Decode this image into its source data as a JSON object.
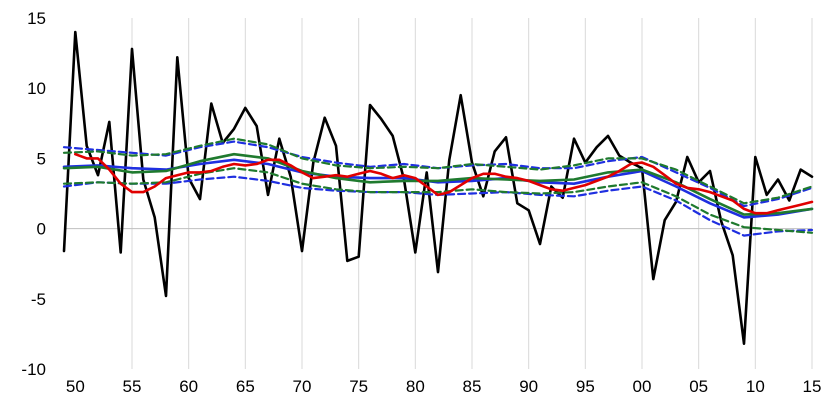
{
  "chart_data": {
    "type": "line",
    "title": "",
    "xlabel": "",
    "ylabel": "",
    "xlim": [
      1949,
      2015
    ],
    "ylim": [
      -10,
      15
    ],
    "y_ticks": [
      -10,
      -5,
      0,
      5,
      10,
      15
    ],
    "x_tick_values": [
      1950,
      1955,
      1960,
      1965,
      1970,
      1975,
      1980,
      1985,
      1990,
      1995,
      2000,
      2005,
      2010,
      2015
    ],
    "x_tick_labels": [
      "50",
      "55",
      "60",
      "65",
      "70",
      "75",
      "80",
      "85",
      "90",
      "95",
      "00",
      "05",
      "10",
      "15"
    ],
    "grid": "vertical",
    "legend": "none",
    "series": [
      {
        "color": "#000000",
        "dashed": false,
        "x": [
          1949,
          1950,
          1951,
          1952,
          1953,
          1954,
          1955,
          1956,
          1957,
          1958,
          1959,
          1960,
          1961,
          1962,
          1963,
          1964,
          1965,
          1966,
          1967,
          1968,
          1969,
          1970,
          1971,
          1972,
          1973,
          1974,
          1975,
          1976,
          1977,
          1978,
          1979,
          1980,
          1981,
          1982,
          1983,
          1984,
          1985,
          1986,
          1987,
          1988,
          1989,
          1990,
          1991,
          1992,
          1993,
          1994,
          1995,
          1996,
          1997,
          1998,
          1999,
          2000,
          2001,
          2002,
          2003,
          2004,
          2005,
          2006,
          2007,
          2008,
          2009,
          2010,
          2011,
          2012,
          2013,
          2014,
          2015
        ],
        "values": [
          -1.6,
          14.0,
          5.9,
          3.8,
          7.6,
          -1.7,
          12.8,
          3.5,
          0.8,
          -4.8,
          12.2,
          3.6,
          2.1,
          8.9,
          6.1,
          7.1,
          8.6,
          7.3,
          2.4,
          6.4,
          3.7,
          -1.6,
          4.7,
          7.9,
          5.9,
          -2.3,
          -2.0,
          8.8,
          7.8,
          6.6,
          3.5,
          -1.7,
          4.0,
          -3.1,
          4.9,
          9.5,
          4.7,
          2.3,
          5.5,
          6.5,
          1.8,
          1.3,
          -1.1,
          3.0,
          2.2,
          6.4,
          4.7,
          5.8,
          6.6,
          5.2,
          4.7,
          4.3,
          -3.6,
          0.6,
          1.9,
          5.1,
          3.3,
          4.1,
          0.5,
          -1.9,
          -8.2,
          5.1,
          2.4,
          3.5,
          2.0,
          4.2,
          3.7
        ]
      },
      {
        "color": "#e00000",
        "dashed": false,
        "x": [
          1950,
          1951,
          1952,
          1953,
          1954,
          1955,
          1956,
          1957,
          1958,
          1959,
          1960,
          1961,
          1962,
          1963,
          1964,
          1965,
          1966,
          1967,
          1968,
          1969,
          1970,
          1971,
          1972,
          1973,
          1974,
          1975,
          1976,
          1977,
          1978,
          1979,
          1980,
          1981,
          1982,
          1983,
          1984,
          1985,
          1986,
          1987,
          1988,
          1989,
          1990,
          1991,
          1992,
          1993,
          1994,
          1995,
          1996,
          1997,
          1998,
          1999,
          2000,
          2001,
          2002,
          2003,
          2004,
          2005,
          2006,
          2007,
          2008,
          2009,
          2010,
          2011,
          2012,
          2013,
          2014,
          2015
        ],
        "values": [
          5.3,
          5.0,
          5.0,
          4.2,
          3.2,
          2.6,
          2.6,
          3.0,
          3.6,
          3.8,
          4.0,
          4.0,
          4.1,
          4.4,
          4.6,
          4.5,
          4.6,
          4.9,
          4.9,
          4.5,
          4.0,
          3.6,
          3.7,
          3.8,
          3.7,
          3.9,
          4.1,
          3.9,
          3.6,
          3.8,
          3.6,
          3.0,
          2.4,
          2.6,
          3.1,
          3.6,
          3.9,
          3.9,
          3.7,
          3.6,
          3.4,
          3.1,
          2.8,
          2.7,
          2.9,
          3.1,
          3.4,
          3.7,
          4.1,
          4.6,
          4.7,
          4.4,
          3.8,
          3.2,
          2.9,
          2.8,
          2.6,
          2.3,
          2.0,
          1.4,
          1.1,
          1.1,
          1.3,
          1.5,
          1.7,
          1.9
        ]
      },
      {
        "color": "#1f2fe0",
        "dashed": false,
        "x": [
          1949,
          1952,
          1955,
          1958,
          1961,
          1964,
          1967,
          1970,
          1973,
          1976,
          1979,
          1982,
          1985,
          1988,
          1991,
          1994,
          1997,
          2000,
          2003,
          2006,
          2009,
          2012,
          2015
        ],
        "values": [
          4.4,
          4.5,
          4.3,
          4.2,
          4.6,
          4.9,
          4.6,
          4.0,
          3.7,
          3.6,
          3.6,
          3.3,
          3.4,
          3.6,
          3.3,
          3.2,
          3.7,
          4.1,
          3.0,
          1.8,
          0.8,
          1.0,
          1.4
        ]
      },
      {
        "color": "#1f7a2e",
        "dashed": false,
        "x": [
          1949,
          1952,
          1955,
          1958,
          1961,
          1964,
          1967,
          1970,
          1973,
          1976,
          1979,
          1982,
          1985,
          1988,
          1991,
          1994,
          1997,
          2000,
          2003,
          2006,
          2009,
          2012,
          2015
        ],
        "values": [
          4.3,
          4.4,
          4.0,
          4.1,
          4.8,
          5.3,
          5.0,
          4.1,
          3.6,
          3.3,
          3.4,
          3.4,
          3.6,
          3.5,
          3.4,
          3.5,
          4.0,
          4.2,
          3.3,
          2.1,
          1.0,
          1.1,
          1.4
        ]
      },
      {
        "color": "#1f2fe0",
        "dashed": true,
        "x": [
          1949,
          1952,
          1955,
          1958,
          1961,
          1964,
          1967,
          1970,
          1973,
          1976,
          1979,
          1982,
          1985,
          1988,
          1991,
          1994,
          1997,
          2000,
          2003,
          2006,
          2009,
          2012,
          2015
        ],
        "values": [
          5.8,
          5.6,
          5.4,
          5.2,
          5.8,
          6.2,
          5.8,
          5.1,
          4.7,
          4.4,
          4.6,
          4.3,
          4.5,
          4.6,
          4.3,
          4.3,
          4.8,
          5.1,
          4.0,
          2.9,
          1.6,
          2.1,
          2.9
        ]
      },
      {
        "color": "#1f2fe0",
        "dashed": true,
        "x": [
          1949,
          1952,
          1955,
          1958,
          1961,
          1964,
          1967,
          1970,
          1973,
          1976,
          1979,
          1982,
          1985,
          1988,
          1991,
          1994,
          1997,
          2000,
          2003,
          2006,
          2009,
          2012,
          2015
        ],
        "values": [
          3.0,
          3.3,
          3.2,
          3.2,
          3.5,
          3.7,
          3.4,
          2.9,
          2.7,
          2.6,
          2.6,
          2.4,
          2.5,
          2.6,
          2.4,
          2.3,
          2.7,
          3.0,
          2.0,
          0.6,
          -0.5,
          -0.2,
          -0.1
        ]
      },
      {
        "color": "#1f7a2e",
        "dashed": true,
        "x": [
          1949,
          1952,
          1955,
          1958,
          1961,
          1964,
          1967,
          1970,
          1973,
          1976,
          1979,
          1982,
          1985,
          1988,
          1991,
          1994,
          1997,
          2000,
          2003,
          2006,
          2009,
          2012,
          2015
        ],
        "values": [
          5.4,
          5.5,
          5.2,
          5.3,
          5.9,
          6.4,
          6.0,
          5.0,
          4.5,
          4.3,
          4.4,
          4.3,
          4.6,
          4.4,
          4.2,
          4.5,
          5.0,
          5.0,
          4.2,
          3.0,
          1.8,
          2.2,
          3.0
        ]
      },
      {
        "color": "#1f7a2e",
        "dashed": true,
        "x": [
          1949,
          1952,
          1955,
          1958,
          1961,
          1964,
          1967,
          1970,
          1973,
          1976,
          1979,
          1982,
          1985,
          1988,
          1991,
          1994,
          1997,
          2000,
          2003,
          2006,
          2009,
          2012,
          2015
        ],
        "values": [
          3.2,
          3.3,
          3.2,
          3.3,
          3.9,
          4.3,
          4.0,
          3.2,
          2.8,
          2.6,
          2.6,
          2.6,
          2.8,
          2.6,
          2.5,
          2.6,
          3.0,
          3.3,
          2.3,
          1.0,
          0.1,
          -0.1,
          -0.3
        ]
      }
    ]
  }
}
